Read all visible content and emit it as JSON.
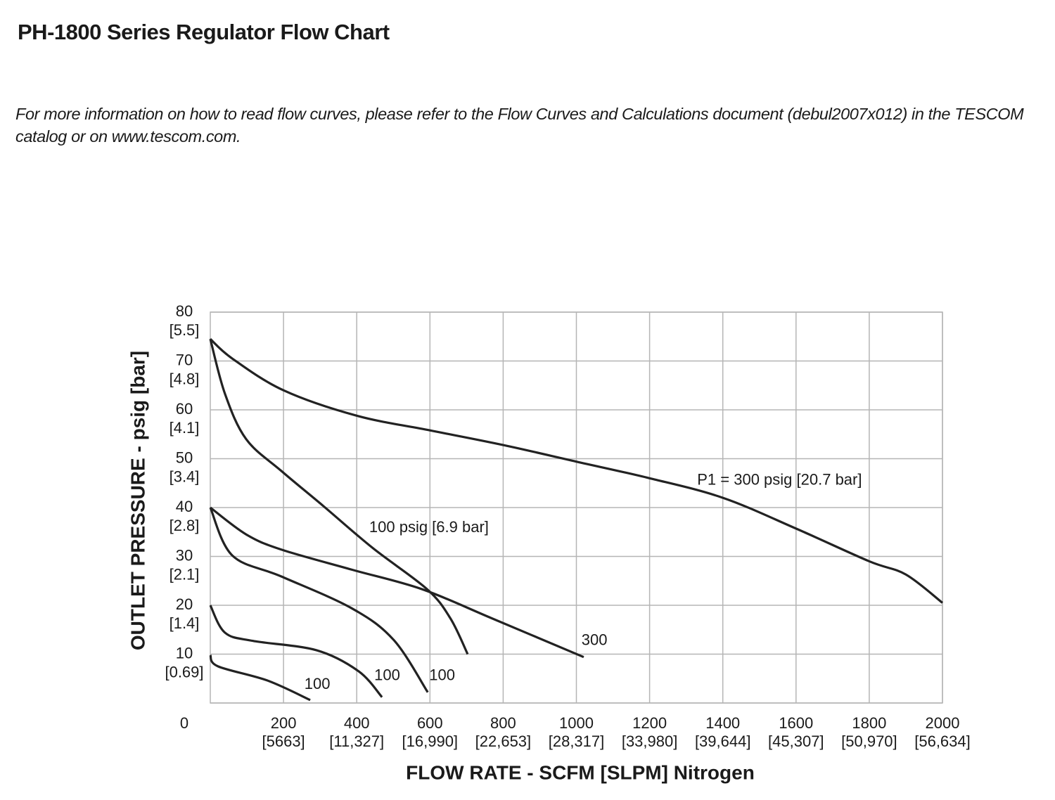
{
  "chart_data": {
    "type": "line",
    "title": "PH-1800 Series Regulator Flow Chart",
    "note": "For more information on how to read flow curves, please refer to the Flow Curves and Calculations document (debul2007x012) in the TESCOM catalog or on www.tescom.com.",
    "x_label": "FLOW RATE - SCFM [SLPM] Nitrogen",
    "y_label": "OUTLET PRESSURE - psig [bar]",
    "xlim": [
      0,
      2000
    ],
    "ylim": [
      0,
      80
    ],
    "xticks": [
      200,
      400,
      600,
      800,
      1000,
      1200,
      1400,
      1600,
      1800,
      2000
    ],
    "xtick_sublabels": [
      "[5663]",
      "[11,327]",
      "[16,990]",
      "[22,653]",
      "[28,317]",
      "[33,980]",
      "[39,644]",
      "[45,307]",
      "[50,970]",
      "[56,634]"
    ],
    "yticks": [
      0,
      10,
      20,
      30,
      40,
      50,
      60,
      70,
      80
    ],
    "ytick_sublabels": [
      null,
      "[0.69]",
      "[1.4]",
      "[2.1]",
      "[2.8]",
      "[3.4]",
      "[4.1]",
      "[4.8]",
      "[5.5]"
    ],
    "grid": true,
    "series": [
      {
        "name": "P1 = 300 psig [20.7 bar]",
        "color": "#222222",
        "x": [
          0,
          60,
          200,
          400,
          600,
          800,
          1000,
          1200,
          1400,
          1600,
          1800,
          1900,
          2000
        ],
        "values": [
          74.5,
          70.5,
          64,
          58.8,
          55.8,
          52.8,
          49.4,
          46,
          42,
          35.7,
          29,
          26.3,
          20.5
        ],
        "label_x": 1330,
        "label_y": 45.5
      },
      {
        "name": "100 psig [6.9 bar]",
        "color": "#222222",
        "x": [
          0,
          40,
          98,
          194,
          309,
          444,
          592,
          656,
          703
        ],
        "values": [
          74.5,
          63.3,
          54,
          47.5,
          40.3,
          31.7,
          23.3,
          17.3,
          10
        ],
        "label_x": 434,
        "label_y": 35.8
      },
      {
        "name": "300",
        "color": "#222222",
        "x": [
          0,
          98,
          194,
          386,
          578,
          770,
          1020
        ],
        "values": [
          40,
          34.5,
          31.4,
          27.3,
          23.3,
          17.3,
          9.4
        ],
        "label_x": 1014,
        "label_y": 12.7
      },
      {
        "name": "100",
        "color": "#222222",
        "x": [
          0,
          60,
          194,
          386,
          501,
          594
        ],
        "values": [
          40,
          30.2,
          25.9,
          19.4,
          12.9,
          2.2
        ],
        "label_x": 598,
        "label_y": 5.5
      },
      {
        "name": "100",
        "color": "#222222",
        "x": [
          0,
          40,
          117,
          290,
          405,
          469
        ],
        "values": [
          20,
          14.4,
          12.7,
          10.8,
          6.5,
          1.2
        ],
        "label_x": 448,
        "label_y": 5.5
      },
      {
        "name": "100",
        "color": "#222222",
        "x": [
          0,
          21,
          156,
          273
        ],
        "values": [
          9.8,
          7.5,
          4.6,
          0.6
        ],
        "label_x": 257,
        "label_y": 3.7
      }
    ]
  }
}
